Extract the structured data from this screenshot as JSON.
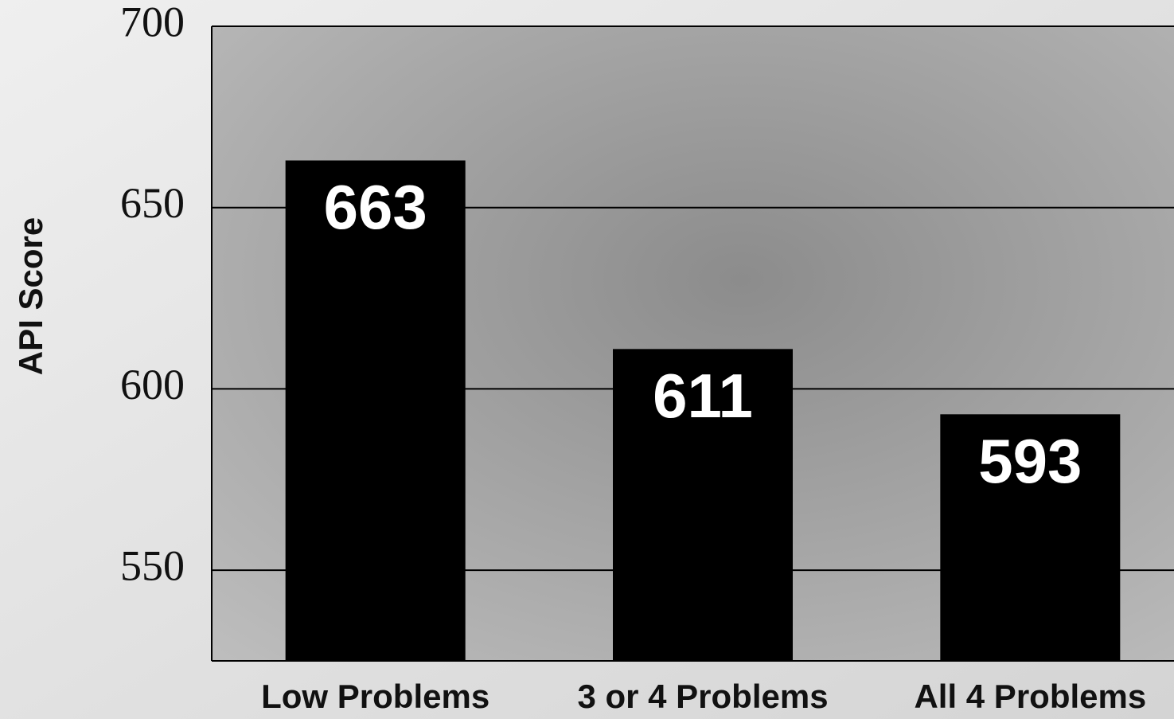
{
  "chart_data": {
    "type": "bar",
    "y_label": "API Score",
    "categories": [
      "Low Problems",
      "3 or 4 Problems",
      "All 4 Problems"
    ],
    "values": [
      663,
      611,
      593
    ],
    "color": "#000000",
    "ylim": [
      525,
      700
    ],
    "yticks": [
      550,
      600,
      650,
      700
    ],
    "grid": true
  }
}
